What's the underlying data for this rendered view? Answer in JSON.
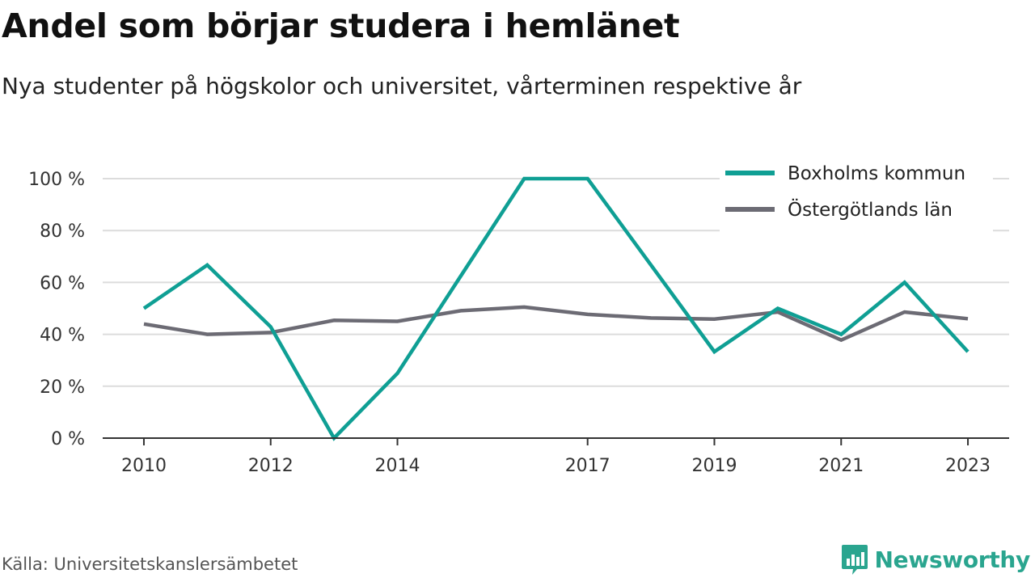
{
  "header": {
    "title": "Andel som börjar studera i hemlänet",
    "subtitle": "Nya studenter på högskolor och universitet, vårterminen respektive år"
  },
  "footer": {
    "source": "Källa: Universitetskanslersämbetet",
    "brand": "Newsworthy"
  },
  "colors": {
    "boxholm": "#0f9f94",
    "ostergotland": "#6c6b74",
    "grid": "#dcdcdc",
    "axis": "#333333",
    "brand": "#2aa58f"
  },
  "chart_data": {
    "type": "line",
    "title": "Andel som börjar studera i hemlänet",
    "subtitle": "Nya studenter på högskolor och universitet, vårterminen respektive år",
    "x": [
      2010,
      2011,
      2012,
      2013,
      2014,
      2015,
      2016,
      2017,
      2018,
      2019,
      2020,
      2021,
      2022,
      2023
    ],
    "x_tick_values": [
      2010,
      2012,
      2014,
      2017,
      2019,
      2021,
      2023
    ],
    "x_tick_labels": [
      "2010",
      "2012",
      "2014",
      "2017",
      "2019",
      "2021",
      "2023"
    ],
    "y_tick_values": [
      0,
      20,
      40,
      60,
      80,
      100
    ],
    "y_tick_labels": [
      "0 %",
      "20 %",
      "40 %",
      "60 %",
      "80 %",
      "100 %"
    ],
    "ylim": [
      0,
      100
    ],
    "xlim": [
      2009.35,
      2023.65
    ],
    "grid": true,
    "legend_position": "top-right",
    "series": [
      {
        "name": "Boxholms kommun",
        "color": "#0f9f94",
        "values": [
          50,
          66.7,
          42.9,
          0,
          25,
          62.5,
          100,
          100,
          66.7,
          33.3,
          50,
          40,
          60,
          33.3
        ]
      },
      {
        "name": "Östergötlands län",
        "color": "#6c6b74",
        "values": [
          44,
          40,
          40.7,
          45.4,
          45,
          49.1,
          50.5,
          47.7,
          46.3,
          45.9,
          48.6,
          37.8,
          48.6,
          46
        ]
      }
    ]
  }
}
